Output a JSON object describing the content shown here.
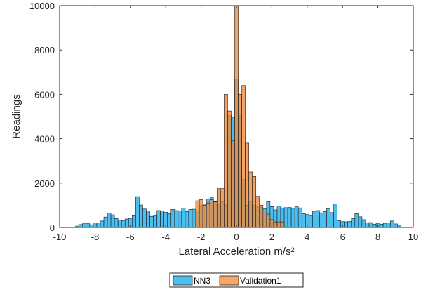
{
  "chart_data": {
    "type": "bar",
    "title": "",
    "xlabel": "Lateral Acceleration m/s²",
    "ylabel": "Readings",
    "xlim": [
      -10,
      10
    ],
    "ylim": [
      0,
      10000
    ],
    "xticks": [
      -10,
      -8,
      -6,
      -4,
      -2,
      0,
      2,
      4,
      6,
      8,
      10
    ],
    "yticks": [
      0,
      2000,
      4000,
      6000,
      8000,
      10000
    ],
    "grid": false,
    "legend_position": "bottom-center",
    "series": [
      {
        "name": "NN3",
        "color": "#4dbeee",
        "bin_width": 0.2,
        "bins": [
          {
            "x": -9.0,
            "y": 60
          },
          {
            "x": -8.8,
            "y": 130
          },
          {
            "x": -8.6,
            "y": 190
          },
          {
            "x": -8.4,
            "y": 170
          },
          {
            "x": -8.2,
            "y": 120
          },
          {
            "x": -8.0,
            "y": 200
          },
          {
            "x": -7.8,
            "y": 200
          },
          {
            "x": -7.6,
            "y": 290
          },
          {
            "x": -7.4,
            "y": 470
          },
          {
            "x": -7.2,
            "y": 650
          },
          {
            "x": -7.0,
            "y": 570
          },
          {
            "x": -6.8,
            "y": 400
          },
          {
            "x": -6.6,
            "y": 340
          },
          {
            "x": -6.4,
            "y": 300
          },
          {
            "x": -6.2,
            "y": 380
          },
          {
            "x": -6.0,
            "y": 410
          },
          {
            "x": -5.8,
            "y": 530
          },
          {
            "x": -5.6,
            "y": 1390
          },
          {
            "x": -5.4,
            "y": 1010
          },
          {
            "x": -5.2,
            "y": 830
          },
          {
            "x": -5.0,
            "y": 740
          },
          {
            "x": -4.8,
            "y": 500
          },
          {
            "x": -4.6,
            "y": 520
          },
          {
            "x": -4.4,
            "y": 760
          },
          {
            "x": -4.2,
            "y": 740
          },
          {
            "x": -4.0,
            "y": 680
          },
          {
            "x": -3.8,
            "y": 620
          },
          {
            "x": -3.6,
            "y": 810
          },
          {
            "x": -3.4,
            "y": 760
          },
          {
            "x": -3.2,
            "y": 740
          },
          {
            "x": -3.0,
            "y": 870
          },
          {
            "x": -2.8,
            "y": 720
          },
          {
            "x": -2.6,
            "y": 810
          },
          {
            "x": -2.4,
            "y": 820
          },
          {
            "x": -2.2,
            "y": 730
          },
          {
            "x": -2.0,
            "y": 990
          },
          {
            "x": -1.8,
            "y": 1050
          },
          {
            "x": -1.6,
            "y": 1290
          },
          {
            "x": -1.4,
            "y": 1340
          },
          {
            "x": -1.2,
            "y": 1160
          },
          {
            "x": -1.0,
            "y": 1020
          },
          {
            "x": -0.8,
            "y": 1150
          },
          {
            "x": -0.6,
            "y": 1040
          },
          {
            "x": -0.4,
            "y": 5050
          },
          {
            "x": -0.2,
            "y": 4970
          },
          {
            "x": 0.0,
            "y": 6690
          },
          {
            "x": 0.2,
            "y": 5040
          },
          {
            "x": 0.4,
            "y": 2160
          },
          {
            "x": 0.6,
            "y": 1000
          },
          {
            "x": 0.8,
            "y": 1150
          },
          {
            "x": 1.0,
            "y": 1010
          },
          {
            "x": 1.2,
            "y": 930
          },
          {
            "x": 1.4,
            "y": 900
          },
          {
            "x": 1.6,
            "y": 850
          },
          {
            "x": 1.8,
            "y": 1160
          },
          {
            "x": 2.0,
            "y": 940
          },
          {
            "x": 2.2,
            "y": 790
          },
          {
            "x": 2.4,
            "y": 960
          },
          {
            "x": 2.6,
            "y": 880
          },
          {
            "x": 2.8,
            "y": 890
          },
          {
            "x": 3.0,
            "y": 900
          },
          {
            "x": 3.2,
            "y": 860
          },
          {
            "x": 3.4,
            "y": 930
          },
          {
            "x": 3.6,
            "y": 880
          },
          {
            "x": 3.8,
            "y": 620
          },
          {
            "x": 4.0,
            "y": 580
          },
          {
            "x": 4.2,
            "y": 520
          },
          {
            "x": 4.4,
            "y": 730
          },
          {
            "x": 4.6,
            "y": 760
          },
          {
            "x": 4.8,
            "y": 660
          },
          {
            "x": 5.0,
            "y": 720
          },
          {
            "x": 5.2,
            "y": 850
          },
          {
            "x": 5.4,
            "y": 670
          },
          {
            "x": 5.6,
            "y": 1050
          },
          {
            "x": 5.8,
            "y": 300
          },
          {
            "x": 6.0,
            "y": 260
          },
          {
            "x": 6.2,
            "y": 250
          },
          {
            "x": 6.4,
            "y": 270
          },
          {
            "x": 6.6,
            "y": 400
          },
          {
            "x": 6.8,
            "y": 620
          },
          {
            "x": 7.0,
            "y": 480
          },
          {
            "x": 7.2,
            "y": 350
          },
          {
            "x": 7.4,
            "y": 200
          },
          {
            "x": 7.6,
            "y": 220
          },
          {
            "x": 7.8,
            "y": 150
          },
          {
            "x": 8.0,
            "y": 190
          },
          {
            "x": 8.2,
            "y": 150
          },
          {
            "x": 8.4,
            "y": 190
          },
          {
            "x": 8.6,
            "y": 200
          },
          {
            "x": 8.8,
            "y": 290
          },
          {
            "x": 9.0,
            "y": 160
          },
          {
            "x": 9.2,
            "y": 70
          }
        ]
      },
      {
        "name": "Validation1",
        "color": "#ee8a3b",
        "bin_width": 0.2,
        "bins": [
          {
            "x": -2.2,
            "y": 1200
          },
          {
            "x": -2.0,
            "y": 1250
          },
          {
            "x": -1.8,
            "y": 1000
          },
          {
            "x": -1.6,
            "y": 1100
          },
          {
            "x": -1.4,
            "y": 1250
          },
          {
            "x": -1.2,
            "y": 1150
          },
          {
            "x": -1.0,
            "y": 1750
          },
          {
            "x": -0.8,
            "y": 1750
          },
          {
            "x": -0.6,
            "y": 6000
          },
          {
            "x": -0.4,
            "y": 5250
          },
          {
            "x": -0.2,
            "y": 3900
          },
          {
            "x": 0.0,
            "y": 10000
          },
          {
            "x": 0.2,
            "y": 6000
          },
          {
            "x": 0.4,
            "y": 6400
          },
          {
            "x": 0.6,
            "y": 3800
          },
          {
            "x": 0.8,
            "y": 2500
          },
          {
            "x": 1.0,
            "y": 2300
          },
          {
            "x": 1.2,
            "y": 1400
          },
          {
            "x": 1.4,
            "y": 1000
          },
          {
            "x": 1.6,
            "y": 650
          },
          {
            "x": 1.8,
            "y": 600
          },
          {
            "x": 2.0,
            "y": 350
          },
          {
            "x": 2.2,
            "y": 250
          },
          {
            "x": 2.4,
            "y": 250
          },
          {
            "x": 2.6,
            "y": 250
          }
        ]
      }
    ],
    "legend": [
      "NN3",
      "Validation1"
    ]
  }
}
